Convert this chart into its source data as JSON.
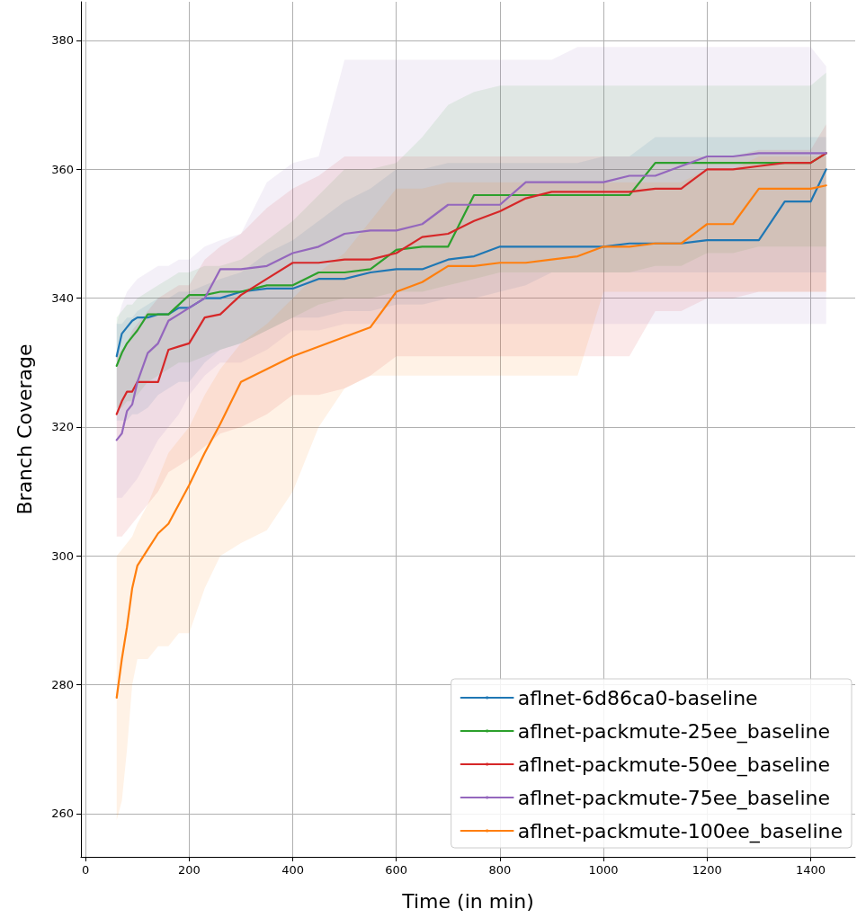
{
  "chart_data": {
    "type": "line",
    "xlabel": "Time (in min)",
    "ylabel": "Branch Coverage",
    "x": [
      60,
      70,
      80,
      90,
      100,
      120,
      140,
      160,
      180,
      200,
      230,
      260,
      300,
      350,
      400,
      450,
      500,
      550,
      600,
      650,
      700,
      750,
      800,
      850,
      900,
      950,
      1000,
      1050,
      1100,
      1150,
      1200,
      1250,
      1300,
      1350,
      1400,
      1430
    ],
    "xlim": [
      -9,
      1486
    ],
    "ylim": [
      253.3,
      386
    ],
    "xticks": [
      0,
      200,
      400,
      600,
      800,
      1000,
      1200,
      1400
    ],
    "yticks": [
      260,
      280,
      300,
      320,
      340,
      360,
      380
    ],
    "grid": true,
    "legend": "bottom right",
    "series": [
      {
        "name": "aflnet-6d86ca0-baseline",
        "color": "#1f77b4",
        "values": [
          331,
          334.5,
          335.5,
          336.5,
          337,
          337,
          337.5,
          337.5,
          338.5,
          338.5,
          340,
          340,
          341,
          341.5,
          341.5,
          343,
          343,
          344,
          344.5,
          344.5,
          346,
          346.5,
          348,
          348,
          348,
          348,
          348,
          348.5,
          348.5,
          348.5,
          349,
          349,
          349,
          355,
          355,
          360
        ],
        "lower": [
          321,
          321,
          321,
          322,
          322,
          323,
          325,
          326,
          327,
          327,
          330,
          332,
          333,
          335,
          337,
          337,
          338,
          338,
          339,
          339,
          340,
          340,
          341,
          342,
          344,
          344,
          344,
          344,
          344,
          344,
          344,
          344,
          344,
          344,
          344,
          344
        ],
        "upper": [
          336,
          336,
          337,
          337,
          338,
          339,
          340,
          340,
          341,
          341,
          342,
          343,
          344,
          347,
          349,
          352,
          355,
          357,
          360,
          360,
          361,
          361,
          361,
          361,
          361,
          361,
          362,
          362,
          365,
          365,
          365,
          365,
          365,
          365,
          365,
          365
        ]
      },
      {
        "name": "aflnet-packmute-25ee_baseline",
        "color": "#2ca02c",
        "values": [
          329.5,
          331.5,
          333,
          334,
          335,
          337.5,
          337.5,
          337.5,
          339,
          340.5,
          340.5,
          341,
          341,
          342,
          342,
          344,
          344,
          344.5,
          347.5,
          348,
          348,
          356,
          356,
          356,
          356,
          356,
          356,
          356,
          361,
          361,
          361,
          361,
          361,
          361,
          361,
          362.5
        ],
        "lower": [
          323,
          323,
          324,
          324,
          325,
          327,
          328,
          329,
          330,
          330,
          331,
          332,
          333,
          335,
          337,
          339,
          340,
          340,
          341,
          341,
          342,
          343,
          344,
          344,
          344,
          344,
          344,
          344,
          345,
          345,
          347,
          347,
          348,
          348,
          348,
          348
        ],
        "upper": [
          337,
          338,
          339,
          339,
          340,
          341,
          342,
          343,
          344,
          344,
          345,
          345,
          346,
          349,
          352,
          356,
          360,
          360,
          361,
          365,
          370,
          372,
          373,
          373,
          373,
          373,
          373,
          373,
          373,
          373,
          373,
          373,
          373,
          373,
          373,
          375
        ]
      },
      {
        "name": "aflnet-packmute-50ee_baseline",
        "color": "#d62728",
        "values": [
          322,
          324,
          325.5,
          325.5,
          327,
          327,
          327,
          332,
          332.5,
          333,
          337,
          337.5,
          340.5,
          343,
          345.5,
          345.5,
          346,
          346,
          347,
          349.5,
          350,
          352,
          353.5,
          355.5,
          356.5,
          356.5,
          356.5,
          356.5,
          357,
          357,
          360,
          360,
          360.5,
          361,
          361,
          362.5
        ],
        "lower": [
          303,
          303,
          304,
          305,
          306,
          308,
          310,
          313,
          314,
          315,
          317,
          319,
          320,
          322,
          325,
          325,
          326,
          328,
          331,
          331,
          331,
          331,
          331,
          331,
          331,
          331,
          331,
          331,
          338,
          338,
          340,
          340,
          341,
          341,
          341,
          341
        ],
        "upper": [
          331,
          332,
          333,
          335,
          336,
          338,
          340,
          341,
          342,
          342,
          346,
          348,
          350,
          354,
          357,
          359,
          362,
          362,
          362,
          362,
          362,
          362,
          362,
          362,
          362,
          362,
          362,
          362,
          362,
          362,
          362,
          362,
          363,
          363,
          363,
          367
        ]
      },
      {
        "name": "aflnet-packmute-75ee_baseline",
        "color": "#9467bd",
        "values": [
          318,
          319,
          322.5,
          323.5,
          327,
          331.5,
          333,
          336.5,
          337.5,
          338.5,
          340,
          344.5,
          344.5,
          345,
          347,
          348,
          350,
          350.5,
          350.5,
          351.5,
          354.5,
          354.5,
          354.5,
          358,
          358,
          358,
          358,
          359,
          359,
          360.5,
          362,
          362,
          362.5,
          362.5,
          362.5,
          362.5
        ],
        "lower": [
          309,
          309,
          310,
          311,
          312,
          315,
          318,
          320,
          322,
          325,
          328,
          330,
          330,
          332,
          335,
          335,
          336,
          336,
          336,
          336,
          336,
          336,
          336,
          336,
          336,
          336,
          336,
          336,
          336,
          336,
          336,
          336,
          336,
          336,
          336,
          336
        ],
        "upper": [
          336,
          339,
          341,
          342,
          343,
          344,
          345,
          345,
          346,
          346,
          348,
          349,
          350,
          358,
          361,
          362,
          377,
          377,
          377,
          377,
          377,
          377,
          377,
          377,
          377,
          379,
          379,
          379,
          379,
          379,
          379,
          379,
          379,
          379,
          379,
          376
        ]
      },
      {
        "name": "aflnet-packmute-100ee_baseline",
        "color": "#ff7f0e",
        "values": [
          278,
          284,
          289,
          295,
          298.5,
          301,
          303.5,
          305,
          308,
          311,
          316,
          320.5,
          327,
          329,
          331,
          332.5,
          334,
          335.5,
          341,
          342.5,
          345,
          345,
          345.5,
          345.5,
          346,
          346.5,
          348,
          348,
          348.5,
          348.5,
          351.5,
          351.5,
          357,
          357,
          357,
          357.5
        ],
        "lower": [
          259,
          262,
          270,
          280,
          284,
          284,
          286,
          286,
          288,
          288,
          295,
          300,
          302,
          304,
          310,
          320,
          326,
          328,
          328,
          328,
          328,
          328,
          328,
          328,
          328,
          328,
          341,
          341,
          341,
          341,
          341,
          341,
          341,
          341,
          341,
          341
        ],
        "upper": [
          300,
          301,
          302,
          303,
          305,
          308,
          312,
          316,
          318,
          320,
          325,
          329,
          333,
          336,
          340,
          344,
          347,
          352,
          357,
          357,
          358,
          358,
          358,
          358,
          358,
          358,
          358,
          358,
          358,
          358,
          360,
          360,
          362,
          362,
          362,
          362
        ]
      }
    ]
  }
}
